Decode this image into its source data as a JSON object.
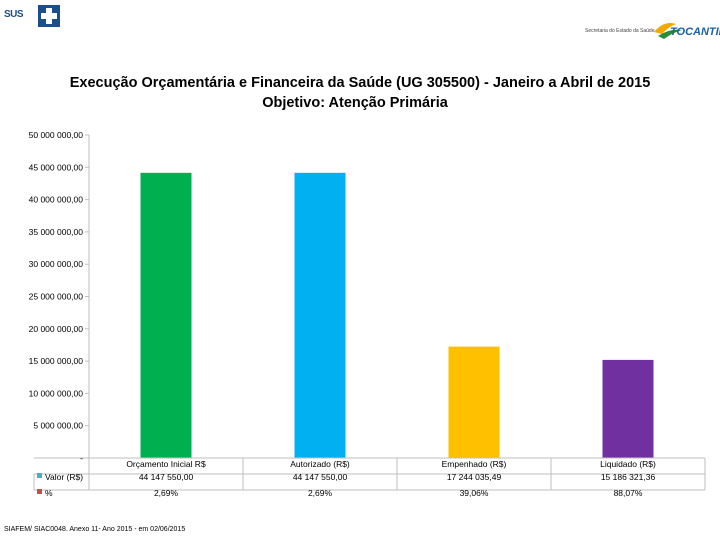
{
  "header": {
    "left_logo_text": "SUS",
    "right_logo_text": "Secretaria do Estado da Saúde",
    "right_logo_brand": "TOCANTINS"
  },
  "title_line1": "Execução Orçamentária e Financeira da Saúde (UG 305500) - Janeiro a Abril de 2015",
  "title_line2": "Objetivo: Atenção Primária",
  "chart_data": {
    "type": "bar",
    "title": "Execução Orçamentária e Financeira da Saúde (UG 305500) - Janeiro a Abril de 2015 / Objetivo: Atenção Primária",
    "categories": [
      "Orçamento Inicial R$",
      "Autorizado (R$)",
      "Empenhado (R$)",
      "Liquidado (R$)"
    ],
    "values": [
      44147550.0,
      44147550.0,
      17244035.49,
      15186321.36
    ],
    "bar_colors": [
      "#00b050",
      "#00b0f0",
      "#ffc000",
      "#7030a0"
    ],
    "ylim": [
      0,
      50000000
    ],
    "y_tick_values": [
      0,
      5000000,
      10000000,
      15000000,
      20000000,
      25000000,
      30000000,
      35000000,
      40000000,
      45000000,
      50000000
    ],
    "y_tick_labels": [
      "-",
      "5 000 000,00",
      "10 000 000,00",
      "15 000 000,00",
      "20 000 000,00",
      "25 000 000,00",
      "30 000 000,00",
      "35 000 000,00",
      "40 000 000,00",
      "45 000 000,00",
      "50 000 000,00"
    ],
    "grid": false,
    "data_table": {
      "rows": [
        {
          "name": "Valor (R$)",
          "color": "#4bacc6",
          "cells": [
            "44 147 550,00",
            "44 147 550,00",
            "17 244 035,49",
            "15 186 321,36"
          ]
        },
        {
          "name": "%",
          "color": "#c0504d",
          "cells": [
            "2,69%",
            "2,69%",
            "39,06%",
            "88,07%"
          ]
        }
      ]
    }
  },
  "footer": "SIAFEM/ SIAC0048. Anexo 11- Ano 2015 - em 02/06/2015"
}
